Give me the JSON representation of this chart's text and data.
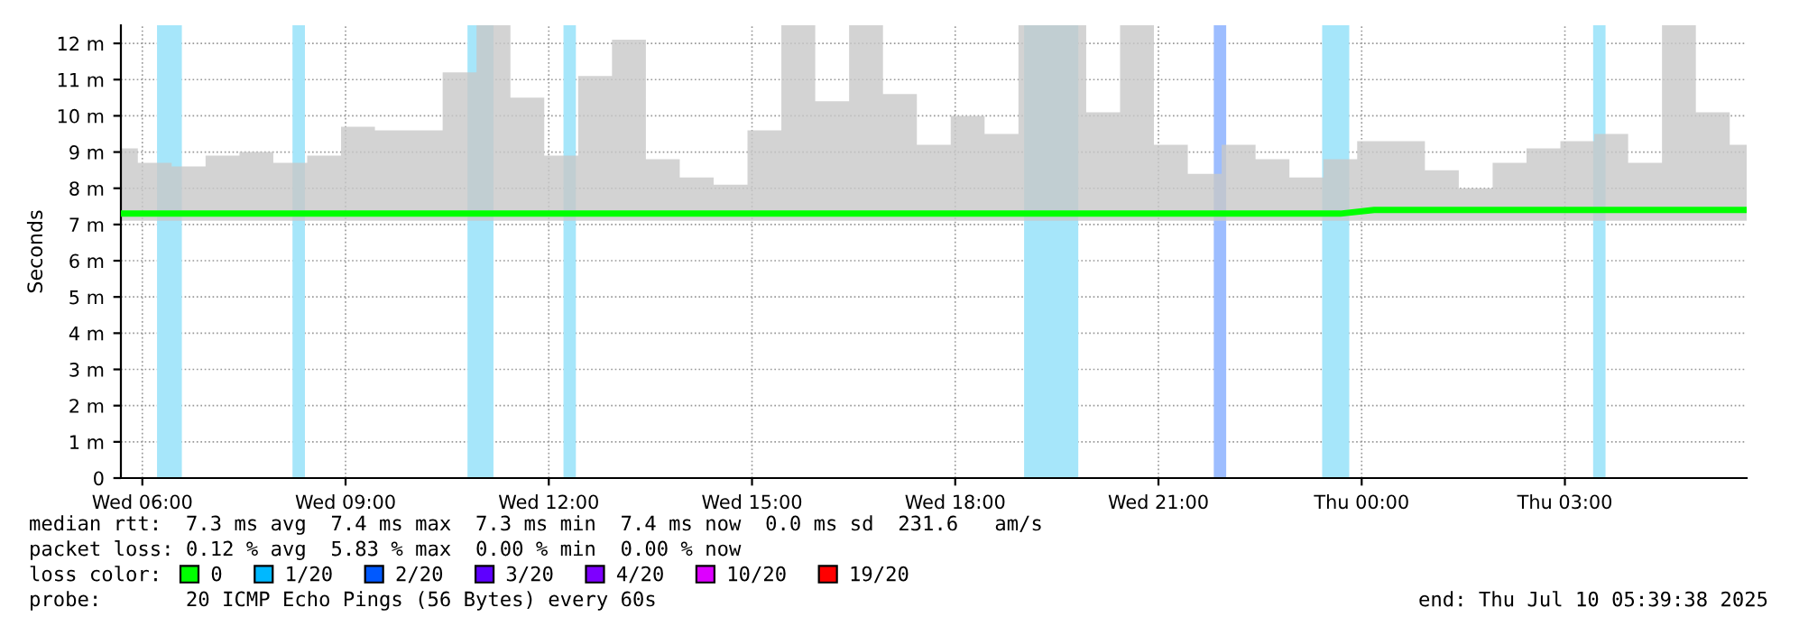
{
  "chart_data": {
    "type": "line",
    "ylabel": "Seconds",
    "x": [
      "2025-07-09T05:41",
      "2025-07-09T06:11",
      "2025-07-09T06:41",
      "2025-07-09T07:11",
      "2025-07-09T07:41",
      "2025-07-09T08:11",
      "2025-07-09T08:41",
      "2025-07-09T09:11",
      "2025-07-09T09:41",
      "2025-07-09T10:11",
      "2025-07-09T10:41",
      "2025-07-09T11:11",
      "2025-07-09T11:41",
      "2025-07-09T12:11",
      "2025-07-09T12:41",
      "2025-07-09T13:11",
      "2025-07-09T13:41",
      "2025-07-09T14:11",
      "2025-07-09T14:41",
      "2025-07-09T15:11",
      "2025-07-09T15:41",
      "2025-07-09T16:11",
      "2025-07-09T16:41",
      "2025-07-09T17:11",
      "2025-07-09T17:41",
      "2025-07-09T18:11",
      "2025-07-09T18:41",
      "2025-07-09T19:11",
      "2025-07-09T19:41",
      "2025-07-09T20:11",
      "2025-07-09T20:41",
      "2025-07-09T21:11",
      "2025-07-09T21:41",
      "2025-07-09T22:11",
      "2025-07-09T22:41",
      "2025-07-09T23:11",
      "2025-07-09T23:41",
      "2025-07-10T00:11",
      "2025-07-10T00:41",
      "2025-07-10T01:11",
      "2025-07-10T01:41",
      "2025-07-10T02:11",
      "2025-07-10T02:41",
      "2025-07-10T03:11",
      "2025-07-10T03:41",
      "2025-07-10T04:11",
      "2025-07-10T04:41",
      "2025-07-10T05:11",
      "2025-07-10T05:41"
    ],
    "series": [
      {
        "name": "0",
        "color": "#00ff00",
        "values": [
          7.3,
          7.3,
          7.3,
          7.3,
          7.3,
          7.3,
          7.3,
          7.3,
          7.3,
          7.3,
          7.3,
          7.3,
          7.3,
          7.3,
          7.3,
          7.3,
          7.3,
          7.3,
          7.3,
          7.3,
          7.3,
          7.3,
          7.3,
          7.3,
          7.3,
          7.3,
          7.3,
          7.3,
          7.3,
          7.3,
          7.3,
          7.3,
          7.3,
          7.3,
          7.3,
          7.3,
          7.3,
          7.4,
          7.4,
          7.4,
          7.4,
          7.4,
          7.4,
          7.4,
          7.4,
          7.4,
          7.4,
          7.4,
          7.4
        ],
        "lower": [
          7.1,
          7.1,
          7.1,
          7.1,
          7.1,
          7.1,
          7.1,
          7.1,
          7.1,
          7.1,
          7.1,
          7.1,
          7.1,
          7.1,
          7.1,
          7.1,
          7.1,
          7.1,
          7.1,
          7.1,
          7.1,
          7.1,
          7.1,
          7.1,
          7.1,
          7.1,
          7.1,
          7.1,
          7.1,
          7.1,
          7.1,
          7.1,
          7.1,
          7.1,
          7.1,
          7.1,
          7.1,
          7.1,
          7.1,
          7.1,
          7.1,
          7.1,
          7.1,
          7.1,
          7.1,
          7.1,
          7.1,
          7.1,
          7.1
        ],
        "upper": [
          9.1,
          8.7,
          8.6,
          8.9,
          9.0,
          8.7,
          8.9,
          9.7,
          9.6,
          9.6,
          11.2,
          12.5,
          10.5,
          8.9,
          11.1,
          12.1,
          8.8,
          8.3,
          8.1,
          9.6,
          12.5,
          10.4,
          12.5,
          10.6,
          9.2,
          10.0,
          9.5,
          12.5,
          12.5,
          10.1,
          12.5,
          9.2,
          8.4,
          9.2,
          8.8,
          8.3,
          8.8,
          9.3,
          9.3,
          8.5,
          8.0,
          8.7,
          9.1,
          9.3,
          9.5,
          8.7,
          12.5,
          10.1,
          9.2
        ]
      },
      {
        "name": "1/20",
        "color": "#00b8ff",
        "values": [
          null,
          null,
          null,
          null,
          null,
          null,
          null,
          null,
          null,
          null,
          null,
          null,
          null,
          null,
          null,
          null,
          null,
          null,
          null,
          null,
          null,
          null,
          null,
          null,
          null,
          null,
          null,
          null,
          null,
          null,
          null,
          null,
          null,
          null,
          null,
          null,
          null,
          null,
          null,
          null,
          null,
          null,
          null,
          null,
          null,
          null,
          null,
          null,
          null
        ]
      },
      {
        "name": "2/20",
        "color": "#0059ff",
        "values": [
          null,
          null,
          null,
          null,
          null,
          null,
          null,
          null,
          null,
          null,
          null,
          null,
          null,
          null,
          null,
          null,
          null,
          null,
          null,
          null,
          null,
          null,
          null,
          null,
          null,
          null,
          null,
          null,
          null,
          null,
          null,
          null,
          null,
          null,
          null,
          null,
          null,
          null,
          null,
          null,
          null,
          null,
          null,
          null,
          null,
          null,
          null,
          null,
          null
        ]
      },
      {
        "name": "3/20",
        "color": "#5e00ff",
        "values": [
          null,
          null,
          null,
          null,
          null,
          null,
          null,
          null,
          null,
          null,
          null,
          null,
          null,
          null,
          null,
          null,
          null,
          null,
          null,
          null,
          null,
          null,
          null,
          null,
          null,
          null,
          null,
          null,
          null,
          null,
          null,
          null,
          null,
          null,
          null,
          null,
          null,
          null,
          null,
          null,
          null,
          null,
          null,
          null,
          null,
          null,
          null,
          null,
          null
        ]
      },
      {
        "name": "4/20",
        "color": "#7e00ff",
        "values": [
          null,
          null,
          null,
          null,
          null,
          null,
          null,
          null,
          null,
          null,
          null,
          null,
          null,
          null,
          null,
          null,
          null,
          null,
          null,
          null,
          null,
          null,
          null,
          null,
          null,
          null,
          null,
          null,
          null,
          null,
          null,
          null,
          null,
          null,
          null,
          null,
          null,
          null,
          null,
          null,
          null,
          null,
          null,
          null,
          null,
          null,
          null,
          null,
          null
        ]
      },
      {
        "name": "10/20",
        "color": "#dd00ff",
        "values": [
          null,
          null,
          null,
          null,
          null,
          null,
          null,
          null,
          null,
          null,
          null,
          null,
          null,
          null,
          null,
          null,
          null,
          null,
          null,
          null,
          null,
          null,
          null,
          null,
          null,
          null,
          null,
          null,
          null,
          null,
          null,
          null,
          null,
          null,
          null,
          null,
          null,
          null,
          null,
          null,
          null,
          null,
          null,
          null,
          null,
          null,
          null,
          null,
          null
        ]
      },
      {
        "name": "19/20",
        "color": "#ff0000",
        "values": [
          null,
          null,
          null,
          null,
          null,
          null,
          null,
          null,
          null,
          null,
          null,
          null,
          null,
          null,
          null,
          null,
          null,
          null,
          null,
          null,
          null,
          null,
          null,
          null,
          null,
          null,
          null,
          null,
          null,
          null,
          null,
          null,
          null,
          null,
          null,
          null,
          null,
          null,
          null,
          null,
          null,
          null,
          null,
          null,
          null,
          null,
          null,
          null,
          null
        ]
      }
    ],
    "bands": [
      {
        "axis": "x",
        "from": "2025-07-09T06:13",
        "to": "2025-07-09T06:35",
        "color": "#a6e6fa"
      },
      {
        "axis": "x",
        "from": "2025-07-09T08:13",
        "to": "2025-07-09T08:24",
        "color": "#a6e6fa"
      },
      {
        "axis": "x",
        "from": "2025-07-09T10:48",
        "to": "2025-07-09T11:11",
        "color": "#a6e6fa"
      },
      {
        "axis": "x",
        "from": "2025-07-09T12:13",
        "to": "2025-07-09T12:24",
        "color": "#a6e6fa"
      },
      {
        "axis": "x",
        "from": "2025-07-09T19:01",
        "to": "2025-07-09T19:49",
        "color": "#a6e6fa"
      },
      {
        "axis": "x",
        "from": "2025-07-09T21:49",
        "to": "2025-07-09T22:00",
        "color": "#9dbdff"
      },
      {
        "axis": "x",
        "from": "2025-07-09T23:25",
        "to": "2025-07-09T23:49",
        "color": "#a6e6fa"
      },
      {
        "axis": "x",
        "from": "2025-07-10T03:25",
        "to": "2025-07-10T03:36",
        "color": "#a6e6fa"
      }
    ],
    "xlim": [
      "2025-07-09T05:41",
      "2025-07-10T05:41"
    ],
    "xticks": [
      {
        "value": "2025-07-09T06:00",
        "label": "Wed 06:00"
      },
      {
        "value": "2025-07-09T09:00",
        "label": "Wed 09:00"
      },
      {
        "value": "2025-07-09T12:00",
        "label": "Wed 12:00"
      },
      {
        "value": "2025-07-09T15:00",
        "label": "Wed 15:00"
      },
      {
        "value": "2025-07-09T18:00",
        "label": "Wed 18:00"
      },
      {
        "value": "2025-07-09T21:00",
        "label": "Wed 21:00"
      },
      {
        "value": "2025-07-10T00:00",
        "label": "Thu 00:00"
      },
      {
        "value": "2025-07-10T03:00",
        "label": "Thu 03:00"
      }
    ],
    "ylim": [
      0,
      12.5
    ],
    "yticks": [
      0,
      {
        "value": 1,
        "label": "1 m"
      },
      {
        "value": 2,
        "label": "2 m"
      },
      {
        "value": 3,
        "label": "3 m"
      },
      {
        "value": 4,
        "label": "4 m"
      },
      {
        "value": 5,
        "label": "5 m"
      },
      {
        "value": 6,
        "label": "6 m"
      },
      {
        "value": 7,
        "label": "7 m"
      },
      {
        "value": 8,
        "label": "8 m"
      },
      {
        "value": 9,
        "label": "9 m"
      },
      {
        "value": 10,
        "label": "10 m"
      },
      {
        "value": 11,
        "label": "11 m"
      },
      {
        "value": 12,
        "label": "12 m"
      }
    ],
    "grid": true,
    "legend": "bottom",
    "annotations": [
      "median rtt:  7.3 ms avg  7.4 ms max  7.3 ms min  7.4 ms now  0.0 ms sd  231.6   am/s",
      "packet loss: 0.12 % avg  5.83 % max  0.00 % min  0.00 % now",
      "loss color:",
      "probe:       20 ICMP Echo Pings (56 Bytes) every 60s",
      "end: Thu Jul 10 05:39:38 2025"
    ]
  }
}
